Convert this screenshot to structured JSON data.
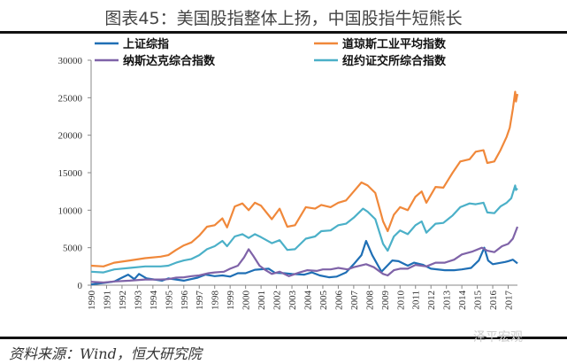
{
  "title": "图表45：美国股指整体上扬，中国股指牛短熊长",
  "source": "资料来源：Wind，恒大研究院",
  "watermark": "泽平宏观",
  "chart_data": {
    "type": "line",
    "title": "图表45：美国股指整体上扬，中国股指牛短熊长",
    "xlabel": "",
    "ylabel": "",
    "xlim": [
      1990,
      2017.6
    ],
    "ylim": [
      0,
      30000
    ],
    "yticks": [
      0,
      5000,
      10000,
      15000,
      20000,
      25000,
      30000
    ],
    "xticks": [
      "1990",
      "1991",
      "1992",
      "1993",
      "1994",
      "1995",
      "1996",
      "1997",
      "1998",
      "1999",
      "2000",
      "2001",
      "2002",
      "2003",
      "2004",
      "2005",
      "2006",
      "2007",
      "2008",
      "2009",
      "2010",
      "2011",
      "2012",
      "2013",
      "2014",
      "2015",
      "2016",
      "2017"
    ],
    "grid": false,
    "legend": "top",
    "series": [
      {
        "name": "上证综指",
        "color": "#1f6fb5",
        "points": [
          [
            1990,
            100
          ],
          [
            1990.8,
            300
          ],
          [
            1991.5,
            500
          ],
          [
            1992,
            1000
          ],
          [
            1992.4,
            1400
          ],
          [
            1992.8,
            800
          ],
          [
            1993.1,
            1500
          ],
          [
            1993.6,
            900
          ],
          [
            1994.3,
            700
          ],
          [
            1994.6,
            600
          ],
          [
            1995,
            900
          ],
          [
            1995.5,
            750
          ],
          [
            1996,
            600
          ],
          [
            1996.9,
            1000
          ],
          [
            1997.4,
            1400
          ],
          [
            1998,
            1200
          ],
          [
            1998.5,
            1300
          ],
          [
            1999,
            1150
          ],
          [
            1999.5,
            1600
          ],
          [
            2000,
            1600
          ],
          [
            2000.6,
            2050
          ],
          [
            2001.5,
            2200
          ],
          [
            2001.9,
            1650
          ],
          [
            2002.5,
            1600
          ],
          [
            2003,
            1500
          ],
          [
            2003.8,
            1400
          ],
          [
            2004.3,
            1700
          ],
          [
            2004.8,
            1300
          ],
          [
            2005.4,
            1050
          ],
          [
            2005.9,
            1150
          ],
          [
            2006.5,
            1700
          ],
          [
            2007,
            2800
          ],
          [
            2007.5,
            4000
          ],
          [
            2007.8,
            5900
          ],
          [
            2008.2,
            4000
          ],
          [
            2008.8,
            1800
          ],
          [
            2009.5,
            3300
          ],
          [
            2009.9,
            3200
          ],
          [
            2010.5,
            2600
          ],
          [
            2010.9,
            3000
          ],
          [
            2011.5,
            2700
          ],
          [
            2012,
            2200
          ],
          [
            2012.9,
            2000
          ],
          [
            2013.5,
            2000
          ],
          [
            2014,
            2100
          ],
          [
            2014.6,
            2300
          ],
          [
            2015.1,
            3300
          ],
          [
            2015.45,
            5000
          ],
          [
            2015.7,
            3300
          ],
          [
            2016,
            2800
          ],
          [
            2016.8,
            3100
          ],
          [
            2017,
            3200
          ],
          [
            2017.3,
            3400
          ],
          [
            2017.6,
            2900
          ]
        ]
      },
      {
        "name": "道琼斯工业平均指数",
        "color": "#f0883a",
        "points": [
          [
            1990,
            2600
          ],
          [
            1990.8,
            2500
          ],
          [
            1991.5,
            3000
          ],
          [
            1992.5,
            3300
          ],
          [
            1993.5,
            3600
          ],
          [
            1994.5,
            3800
          ],
          [
            1995,
            4000
          ],
          [
            1995.5,
            4700
          ],
          [
            1996,
            5300
          ],
          [
            1996.5,
            5700
          ],
          [
            1997,
            6600
          ],
          [
            1997.5,
            7800
          ],
          [
            1998,
            8000
          ],
          [
            1998.5,
            8900
          ],
          [
            1998.8,
            7700
          ],
          [
            1999.3,
            10500
          ],
          [
            1999.8,
            10900
          ],
          [
            2000.2,
            10000
          ],
          [
            2000.6,
            11000
          ],
          [
            2001,
            10600
          ],
          [
            2001.7,
            8800
          ],
          [
            2002.2,
            10200
          ],
          [
            2002.7,
            7800
          ],
          [
            2003.2,
            8000
          ],
          [
            2003.9,
            10400
          ],
          [
            2004.5,
            10200
          ],
          [
            2004.9,
            10700
          ],
          [
            2005.5,
            10400
          ],
          [
            2006,
            11000
          ],
          [
            2006.5,
            11300
          ],
          [
            2007,
            12500
          ],
          [
            2007.5,
            13700
          ],
          [
            2007.9,
            13300
          ],
          [
            2008.4,
            12300
          ],
          [
            2008.9,
            8500
          ],
          [
            2009.2,
            7200
          ],
          [
            2009.6,
            9400
          ],
          [
            2010,
            10400
          ],
          [
            2010.5,
            10000
          ],
          [
            2011,
            11800
          ],
          [
            2011.4,
            12500
          ],
          [
            2011.7,
            11000
          ],
          [
            2012.3,
            13100
          ],
          [
            2012.8,
            13000
          ],
          [
            2013.4,
            15000
          ],
          [
            2013.9,
            16500
          ],
          [
            2014.5,
            16800
          ],
          [
            2014.9,
            17800
          ],
          [
            2015.4,
            18000
          ],
          [
            2015.65,
            16300
          ],
          [
            2016.1,
            16500
          ],
          [
            2016.5,
            18000
          ],
          [
            2016.9,
            19800
          ],
          [
            2017.1,
            21000
          ],
          [
            2017.3,
            23500
          ],
          [
            2017.45,
            25800
          ],
          [
            2017.5,
            24500
          ],
          [
            2017.6,
            25500
          ]
        ]
      },
      {
        "name": "纳斯达克综合指数",
        "color": "#7f63a8",
        "points": [
          [
            1990,
            450
          ],
          [
            1990.8,
            350
          ],
          [
            1991.5,
            500
          ],
          [
            1992.5,
            600
          ],
          [
            1993.5,
            750
          ],
          [
            1994.5,
            750
          ],
          [
            1995,
            800
          ],
          [
            1995.5,
            1000
          ],
          [
            1996,
            1050
          ],
          [
            1996.5,
            1200
          ],
          [
            1997,
            1300
          ],
          [
            1997.6,
            1600
          ],
          [
            1998,
            1700
          ],
          [
            1998.6,
            1800
          ],
          [
            1999,
            2200
          ],
          [
            1999.5,
            2600
          ],
          [
            1999.9,
            3700
          ],
          [
            2000.2,
            4800
          ],
          [
            2000.5,
            3900
          ],
          [
            2000.9,
            2600
          ],
          [
            2001.3,
            2000
          ],
          [
            2001.7,
            1500
          ],
          [
            2002.2,
            1800
          ],
          [
            2002.8,
            1200
          ],
          [
            2003.5,
            1700
          ],
          [
            2004,
            2000
          ],
          [
            2004.6,
            1900
          ],
          [
            2005,
            2100
          ],
          [
            2005.5,
            2100
          ],
          [
            2006,
            2300
          ],
          [
            2006.6,
            2100
          ],
          [
            2007,
            2400
          ],
          [
            2007.8,
            2800
          ],
          [
            2008.3,
            2400
          ],
          [
            2008.9,
            1500
          ],
          [
            2009.2,
            1300
          ],
          [
            2009.6,
            2000
          ],
          [
            2010,
            2200
          ],
          [
            2010.5,
            2200
          ],
          [
            2011,
            2700
          ],
          [
            2011.7,
            2500
          ],
          [
            2012.3,
            3000
          ],
          [
            2012.9,
            3000
          ],
          [
            2013.5,
            3400
          ],
          [
            2014,
            4100
          ],
          [
            2014.7,
            4500
          ],
          [
            2015.3,
            5000
          ],
          [
            2015.65,
            4600
          ],
          [
            2016.1,
            4400
          ],
          [
            2016.6,
            5200
          ],
          [
            2017,
            5500
          ],
          [
            2017.3,
            6200
          ],
          [
            2017.6,
            7800
          ]
        ]
      },
      {
        "name": "纽约证交所综合指数",
        "color": "#4bb0c8",
        "points": [
          [
            1990,
            1800
          ],
          [
            1990.8,
            1700
          ],
          [
            1991.5,
            2100
          ],
          [
            1992.5,
            2300
          ],
          [
            1993.5,
            2500
          ],
          [
            1994.5,
            2500
          ],
          [
            1995,
            2600
          ],
          [
            1995.5,
            3000
          ],
          [
            1996,
            3300
          ],
          [
            1996.5,
            3500
          ],
          [
            1997,
            4000
          ],
          [
            1997.5,
            4800
          ],
          [
            1998,
            5200
          ],
          [
            1998.5,
            5900
          ],
          [
            1998.8,
            5200
          ],
          [
            1999.3,
            6500
          ],
          [
            1999.8,
            6800
          ],
          [
            2000.2,
            6300
          ],
          [
            2000.6,
            6800
          ],
          [
            2001,
            6400
          ],
          [
            2001.7,
            5600
          ],
          [
            2002.2,
            6000
          ],
          [
            2002.7,
            4700
          ],
          [
            2003.2,
            4800
          ],
          [
            2003.9,
            6200
          ],
          [
            2004.5,
            6500
          ],
          [
            2004.9,
            7200
          ],
          [
            2005.5,
            7300
          ],
          [
            2006,
            8000
          ],
          [
            2006.5,
            8200
          ],
          [
            2007,
            9000
          ],
          [
            2007.6,
            10200
          ],
          [
            2007.9,
            9800
          ],
          [
            2008.4,
            8800
          ],
          [
            2008.9,
            5500
          ],
          [
            2009.2,
            4600
          ],
          [
            2009.6,
            6500
          ],
          [
            2010,
            7300
          ],
          [
            2010.5,
            6800
          ],
          [
            2011,
            8000
          ],
          [
            2011.4,
            8500
          ],
          [
            2011.7,
            7000
          ],
          [
            2012.3,
            8200
          ],
          [
            2012.8,
            8300
          ],
          [
            2013.4,
            9300
          ],
          [
            2013.9,
            10400
          ],
          [
            2014.5,
            10900
          ],
          [
            2014.9,
            10800
          ],
          [
            2015.4,
            11000
          ],
          [
            2015.65,
            9700
          ],
          [
            2016.1,
            9600
          ],
          [
            2016.5,
            10500
          ],
          [
            2016.9,
            11000
          ],
          [
            2017.2,
            11600
          ],
          [
            2017.45,
            13300
          ],
          [
            2017.5,
            12700
          ],
          [
            2017.6,
            12900
          ]
        ]
      }
    ]
  }
}
